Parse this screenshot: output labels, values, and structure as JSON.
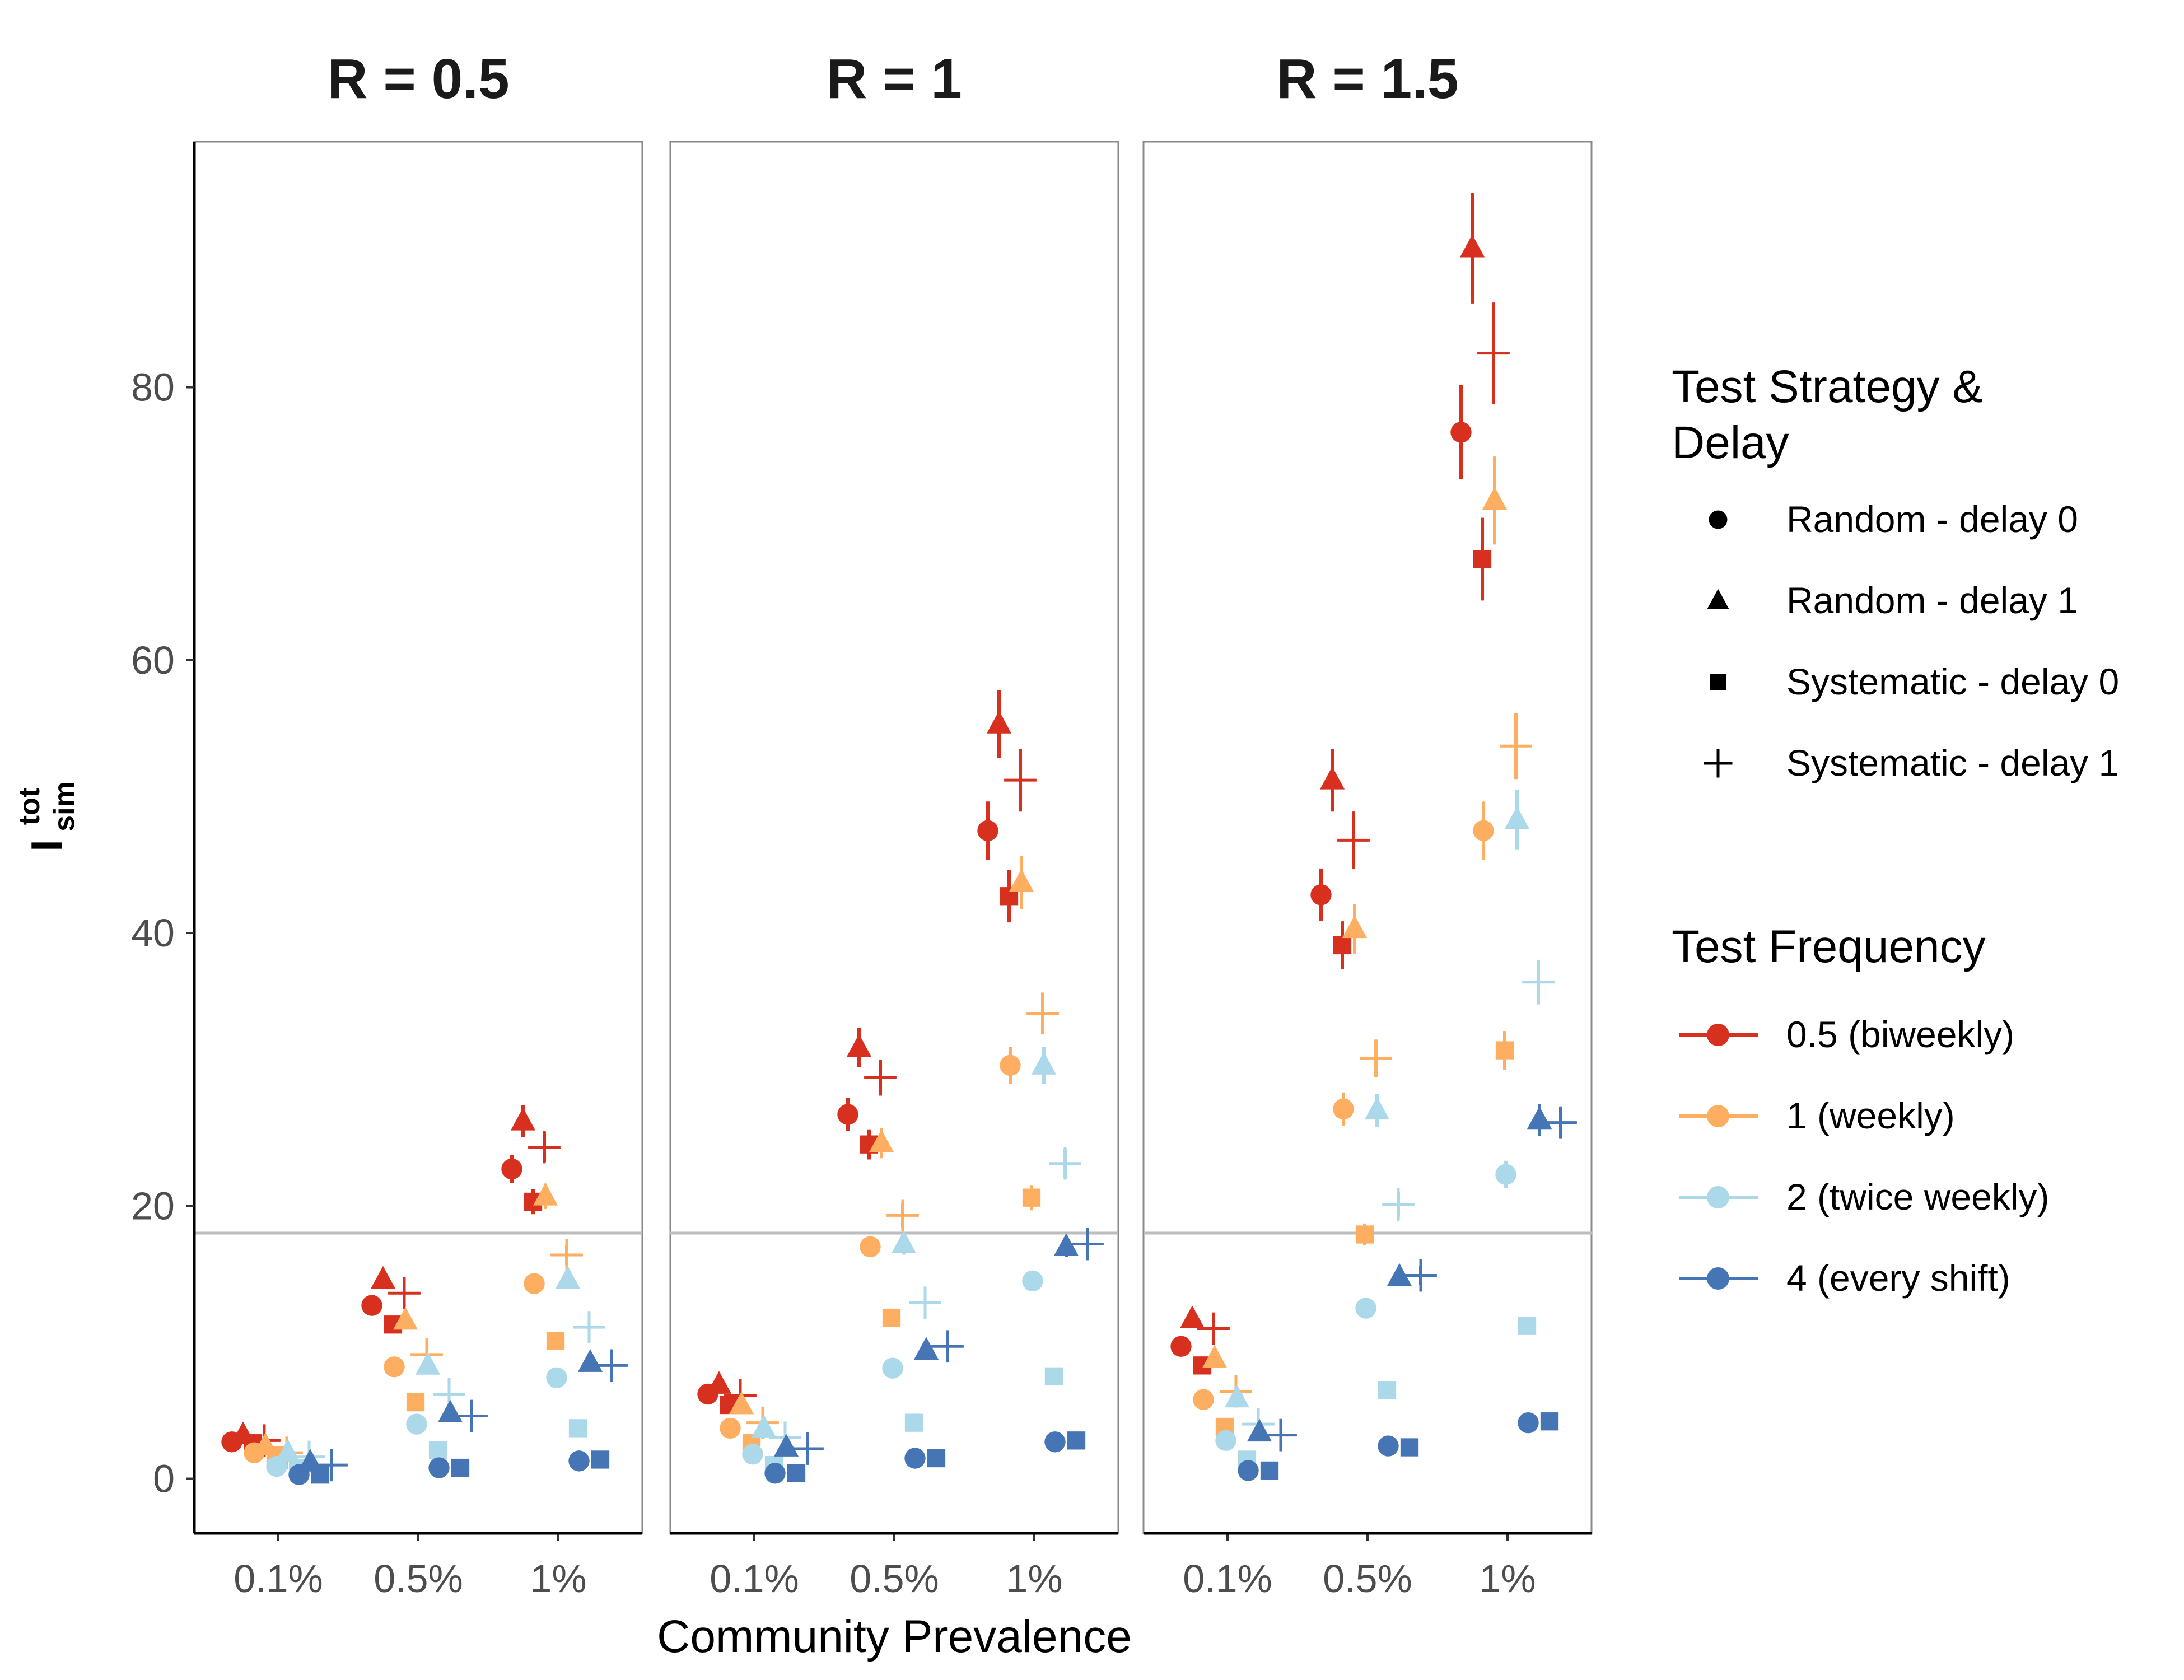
{
  "chart_data": {
    "type": "scatter",
    "facets": [
      "R = 0.5",
      "R = 1",
      "R = 1.5"
    ],
    "x_categories": [
      "0.1%",
      "0.5%",
      "1%"
    ],
    "xlabel": "Community Prevalence",
    "ylabel": {
      "main": "I",
      "sup": "tot",
      "sub": "sim"
    },
    "ylim": [
      -4,
      98
    ],
    "yticks": [
      0,
      20,
      40,
      60,
      80
    ],
    "ytick_labels": [
      "0",
      "20",
      "40",
      "60",
      "80"
    ],
    "reference_line": 18,
    "grid": false,
    "legend_position": "right",
    "legend_shape": {
      "title": "Test Strategy & Delay",
      "title_lines": [
        "Test Strategy &",
        "Delay"
      ],
      "items": [
        {
          "label": "Random - delay 0",
          "shape": "circle"
        },
        {
          "label": "Random - delay 1",
          "shape": "triangle"
        },
        {
          "label": "Systematic - delay 0",
          "shape": "square"
        },
        {
          "label": "Systematic - delay 1",
          "shape": "plus"
        }
      ]
    },
    "legend_color": {
      "title": "Test Frequency",
      "items": [
        {
          "label": "0.5 (biweekly)",
          "color": "#d7301f"
        },
        {
          "label": "1 (weekly)",
          "color": "#fdae61"
        },
        {
          "label": "2 (twice weekly)",
          "color": "#abd9e9"
        },
        {
          "label": "4 (every shift)",
          "color": "#4575b4"
        }
      ]
    },
    "values": {
      "R = 0.5": {
        "0.1%": {
          "0.5 (biweekly)": {
            "Random - delay 0": 2.7,
            "Random - delay 1": 3.2,
            "Systematic - delay 0": 2.6,
            "Systematic - delay 1": 2.8
          },
          "1 (weekly)": {
            "Random - delay 0": 1.9,
            "Random - delay 1": 2.4,
            "Systematic - delay 0": 1.7,
            "Systematic - delay 1": 1.9
          },
          "2 (twice weekly)": {
            "Random - delay 0": 0.9,
            "Random - delay 1": 1.9,
            "Systematic - delay 0": 0.8,
            "Systematic - delay 1": 1.6
          },
          "4 (every shift)": {
            "Random - delay 0": 0.3,
            "Random - delay 1": 1.2,
            "Systematic - delay 0": 0.3,
            "Systematic - delay 1": 1.0
          }
        },
        "0.5%": {
          "0.5 (biweekly)": {
            "Random - delay 0": 12.7,
            "Random - delay 1": 14.6,
            "Systematic - delay 0": 11.3,
            "Systematic - delay 1": 13.6
          },
          "1 (weekly)": {
            "Random - delay 0": 8.2,
            "Random - delay 1": 11.6,
            "Systematic - delay 0": 5.6,
            "Systematic - delay 1": 9.1
          },
          "2 (twice weekly)": {
            "Random - delay 0": 4.0,
            "Random - delay 1": 8.3,
            "Systematic - delay 0": 2.1,
            "Systematic - delay 1": 6.2
          },
          "4 (every shift)": {
            "Random - delay 0": 0.8,
            "Random - delay 1": 4.8,
            "Systematic - delay 0": 0.8,
            "Systematic - delay 1": 4.6
          }
        },
        "1%": {
          "0.5 (biweekly)": {
            "Random - delay 0": 22.7,
            "Random - delay 1": 26.2,
            "Systematic - delay 0": 20.3,
            "Systematic - delay 1": 24.3
          },
          "1 (weekly)": {
            "Random - delay 0": 14.3,
            "Random - delay 1": 20.7,
            "Systematic - delay 0": 10.1,
            "Systematic - delay 1": 16.4
          },
          "2 (twice weekly)": {
            "Random - delay 0": 7.4,
            "Random - delay 1": 14.6,
            "Systematic - delay 0": 3.7,
            "Systematic - delay 1": 11.1
          },
          "4 (every shift)": {
            "Random - delay 0": 1.3,
            "Random - delay 1": 8.5,
            "Systematic - delay 0": 1.4,
            "Systematic - delay 1": 8.3
          }
        }
      },
      "R = 1": {
        "0.1%": {
          "0.5 (biweekly)": {
            "Random - delay 0": 6.2,
            "Random - delay 1": 6.9,
            "Systematic - delay 0": 5.4,
            "Systematic - delay 1": 6.1
          },
          "1 (weekly)": {
            "Random - delay 0": 3.7,
            "Random - delay 1": 5.4,
            "Systematic - delay 0": 2.6,
            "Systematic - delay 1": 4.1
          },
          "2 (twice weekly)": {
            "Random - delay 0": 1.8,
            "Random - delay 1": 3.7,
            "Systematic - delay 0": 1.0,
            "Systematic - delay 1": 3.0
          },
          "4 (every shift)": {
            "Random - delay 0": 0.4,
            "Random - delay 1": 2.3,
            "Systematic - delay 0": 0.4,
            "Systematic - delay 1": 2.2
          }
        },
        "0.5%": {
          "0.5 (biweekly)": {
            "Random - delay 0": 26.7,
            "Random - delay 1": 31.6,
            "Systematic - delay 0": 24.5,
            "Systematic - delay 1": 29.4
          },
          "1 (weekly)": {
            "Random - delay 0": 17.0,
            "Random - delay 1": 24.6,
            "Systematic - delay 0": 11.8,
            "Systematic - delay 1": 19.3
          },
          "2 (twice weekly)": {
            "Random - delay 0": 8.1,
            "Random - delay 1": 17.2,
            "Systematic - delay 0": 4.1,
            "Systematic - delay 1": 12.9
          },
          "4 (every shift)": {
            "Random - delay 0": 1.5,
            "Random - delay 1": 9.4,
            "Systematic - delay 0": 1.5,
            "Systematic - delay 1": 9.7
          }
        },
        "1%": {
          "0.5 (biweekly)": {
            "Random - delay 0": 47.5,
            "Random - delay 1": 55.3,
            "Systematic - delay 0": 42.7,
            "Systematic - delay 1": 51.2
          },
          "1 (weekly)": {
            "Random - delay 0": 30.3,
            "Random - delay 1": 43.7,
            "Systematic - delay 0": 20.6,
            "Systematic - delay 1": 34.1
          },
          "2 (twice weekly)": {
            "Random - delay 0": 14.5,
            "Random - delay 1": 30.3,
            "Systematic - delay 0": 7.5,
            "Systematic - delay 1": 23.1
          },
          "4 (every shift)": {
            "Random - delay 0": 2.7,
            "Random - delay 1": 17.0,
            "Systematic - delay 0": 2.8,
            "Systematic - delay 1": 17.2
          }
        }
      },
      "R = 1.5": {
        "0.1%": {
          "0.5 (biweekly)": {
            "Random - delay 0": 9.7,
            "Random - delay 1": 11.7,
            "Systematic - delay 0": 8.3,
            "Systematic - delay 1": 11.0
          },
          "1 (weekly)": {
            "Random - delay 0": 5.8,
            "Random - delay 1": 8.8,
            "Systematic - delay 0": 3.8,
            "Systematic - delay 1": 6.4
          },
          "2 (twice weekly)": {
            "Random - delay 0": 2.8,
            "Random - delay 1": 5.9,
            "Systematic - delay 0": 1.4,
            "Systematic - delay 1": 4.0
          },
          "4 (every shift)": {
            "Random - delay 0": 0.6,
            "Random - delay 1": 3.4,
            "Systematic - delay 0": 0.6,
            "Systematic - delay 1": 3.2
          }
        },
        "0.5%": {
          "0.5 (biweekly)": {
            "Random - delay 0": 42.8,
            "Random - delay 1": 51.2,
            "Systematic - delay 0": 39.1,
            "Systematic - delay 1": 46.8
          },
          "1 (weekly)": {
            "Random - delay 0": 27.1,
            "Random - delay 1": 40.3,
            "Systematic - delay 0": 17.9,
            "Systematic - delay 1": 30.8
          },
          "2 (twice weekly)": {
            "Random - delay 0": 12.5,
            "Random - delay 1": 27.0,
            "Systematic - delay 0": 6.5,
            "Systematic - delay 1": 20.1
          },
          "4 (every shift)": {
            "Random - delay 0": 2.4,
            "Random - delay 1": 14.8,
            "Systematic - delay 0": 2.3,
            "Systematic - delay 1": 14.9
          }
        },
        "1%": {
          "0.5 (biweekly)": {
            "Random - delay 0": 76.7,
            "Random - delay 1": 90.2,
            "Systematic - delay 0": 67.4,
            "Systematic - delay 1": 82.5
          },
          "1 (weekly)": {
            "Random - delay 0": 47.5,
            "Random - delay 1": 71.7,
            "Systematic - delay 0": 31.4,
            "Systematic - delay 1": 53.7
          },
          "2 (twice weekly)": {
            "Random - delay 0": 22.3,
            "Random - delay 1": 48.3,
            "Systematic - delay 0": 11.2,
            "Systematic - delay 1": 36.4
          },
          "4 (every shift)": {
            "Random - delay 0": 4.1,
            "Random - delay 1": 26.3,
            "Systematic - delay 0": 4.2,
            "Systematic - delay 1": 26.1
          }
        }
      }
    }
  }
}
